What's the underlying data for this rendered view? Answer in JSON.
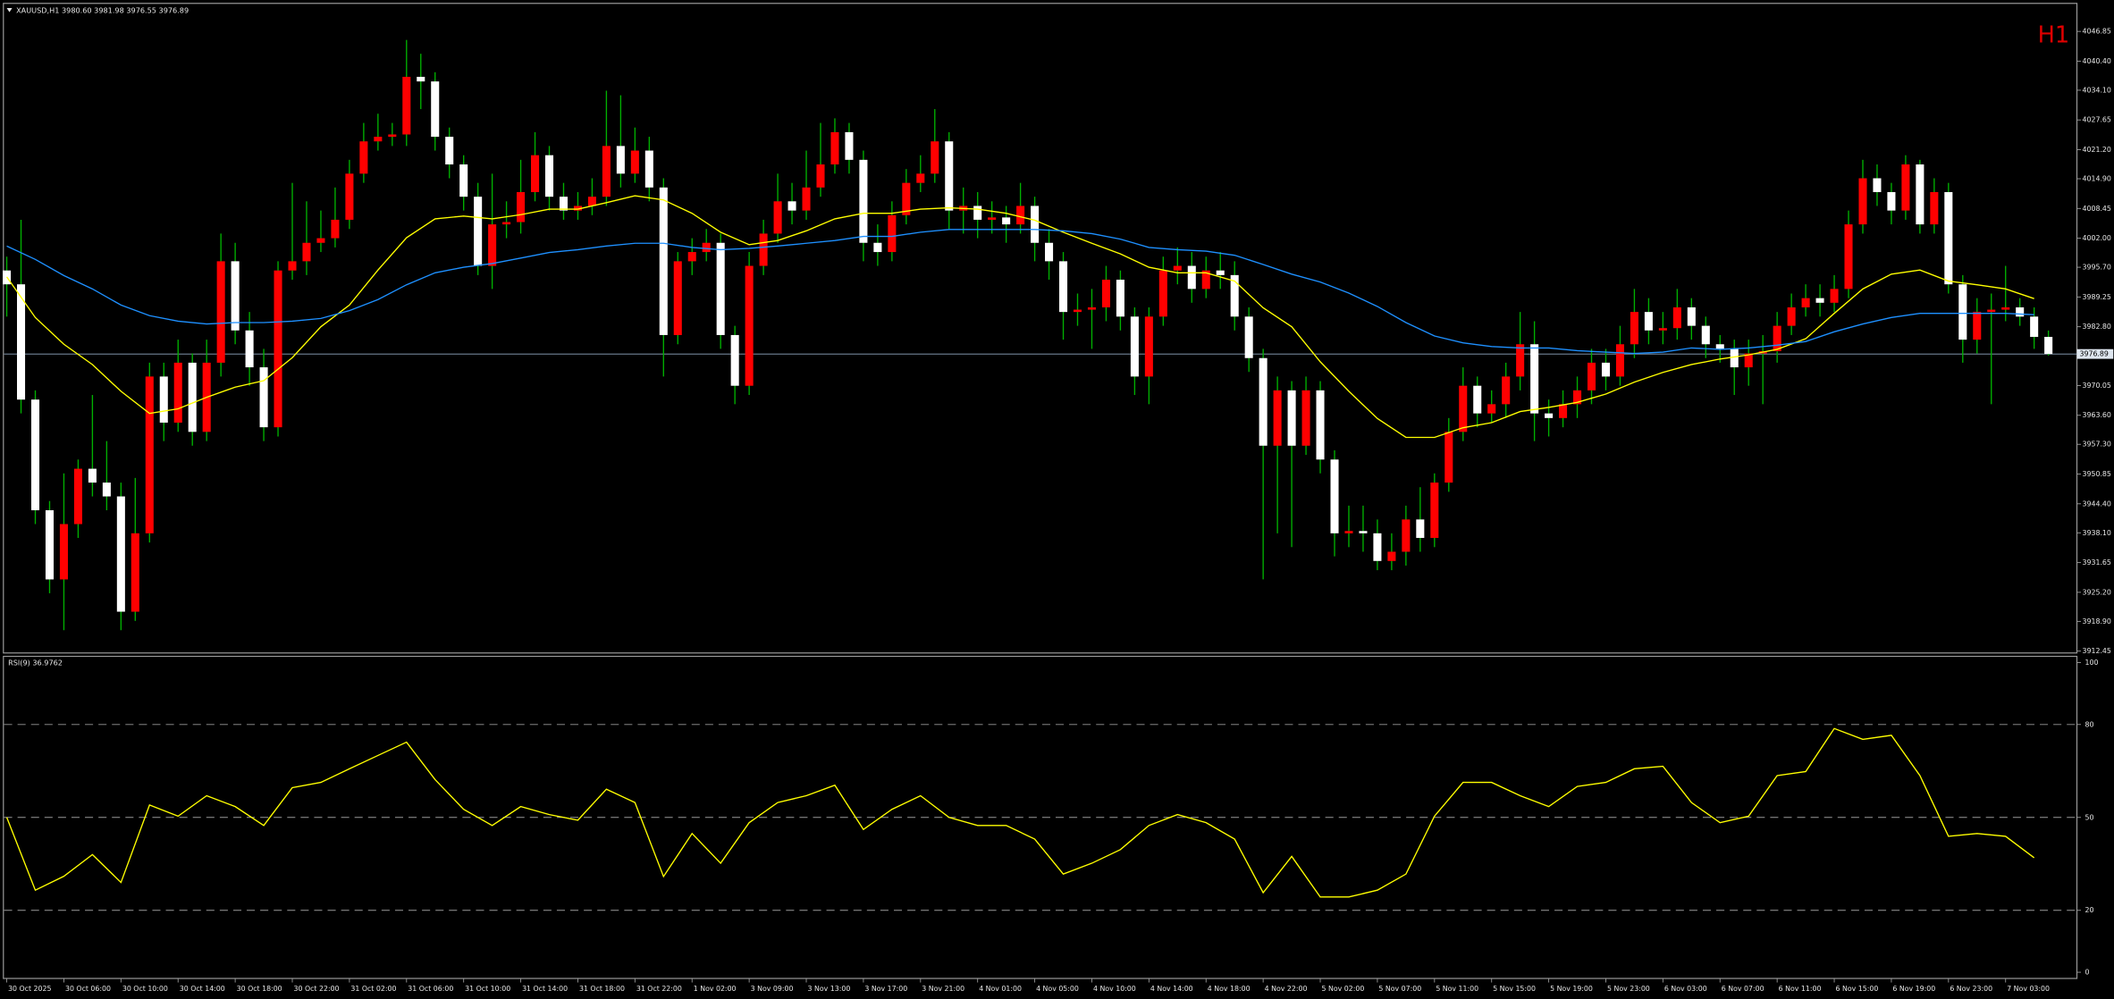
{
  "chart_data": {
    "type": "candlestick",
    "header": "XAUUSD,H1  3980.60 3981.98 3976.55 3976.89",
    "timeframe": "H1",
    "bull_color": "#ff0000",
    "bear_color": "#ffffff",
    "wick_color": "#00b000",
    "ylim": [
      3911.9,
      4052.2
    ],
    "yticks": [
      4046.85,
      {
        "value": 4040.4,
        "label": "4040.40"
      },
      {
        "value": 4034.1,
        "label": "4034.10"
      },
      4027.65,
      {
        "value": 4021.2,
        "label": "4021.20"
      },
      {
        "value": 4014.9,
        "label": "4014.90"
      },
      4008.45,
      {
        "value": 4002,
        "label": "4002.00"
      },
      {
        "value": 3995.7,
        "label": "3995.70"
      },
      3989.25,
      {
        "value": 3982.8,
        "label": "3982.80"
      },
      3970.05,
      {
        "value": 3963.6,
        "label": "3963.60"
      },
      {
        "value": 3957.3,
        "label": "3957.30"
      },
      3950.85,
      {
        "value": 3944.4,
        "label": "3944.40"
      },
      {
        "value": 3938.1,
        "label": "3938.10"
      },
      3931.65,
      {
        "value": 3925.2,
        "label": "3925.20"
      },
      {
        "value": 3918.9,
        "label": "3918.90"
      },
      3912.45
    ],
    "current_price": 3976.89,
    "current_price_color": "#8fa7bf",
    "open": [
      3995,
      3992,
      3967,
      3943,
      3928,
      3940,
      3952,
      3949,
      3946,
      3921,
      3938,
      3972,
      3962,
      3975,
      3960,
      3975,
      3997,
      3982,
      3974,
      3961,
      3995,
      3997,
      4001,
      4002,
      4006,
      4016,
      4023,
      4024,
      4024.5,
      4037,
      4036,
      4024,
      4018,
      4011,
      3996,
      4005,
      4005.5,
      4012,
      4020,
      4011,
      4008,
      4009,
      4011,
      4022,
      4016,
      4021,
      4013,
      3981,
      3997,
      3999,
      4001,
      3981,
      3970,
      3996,
      4003,
      4010,
      4008,
      4013,
      4018,
      4025,
      4019,
      4001,
      3999,
      4007,
      4014,
      4016,
      4023,
      4008,
      4009,
      4006,
      4006.5,
      4005,
      4009,
      4001,
      3997,
      3986,
      3986.5,
      3987,
      3993,
      3985,
      3972,
      3985,
      3995,
      3996,
      3991,
      3995,
      3994,
      3985,
      3976,
      3957,
      3969,
      3957,
      3969,
      3954,
      3938,
      3938.5,
      3938,
      3932,
      3934,
      3941,
      3937,
      3949,
      3960,
      3970,
      3964,
      3966,
      3972,
      3979,
      3964,
      3963,
      3966,
      3969,
      3975,
      3972,
      3979,
      3986,
      3982,
      3982.5,
      3987,
      3983,
      3979,
      3978,
      3974,
      3977,
      3977.5,
      3983,
      3987,
      3989,
      3988,
      3991,
      4005,
      4015,
      4012,
      4008,
      4018,
      4005,
      4012,
      3992,
      3980,
      3986,
      3986.5,
      3987,
      3985,
      3980.6
    ],
    "high": [
      3998,
      4006,
      3969,
      3945,
      3951,
      3954,
      3968,
      3958,
      3949,
      3950,
      3975,
      3975,
      3980,
      3977,
      3980,
      4003,
      4001,
      3986,
      3978,
      3997,
      4014,
      4010,
      4008,
      4013,
      4019,
      4027,
      4029,
      4027,
      4045,
      4042,
      4038,
      4026,
      4020,
      4014,
      4016,
      4010,
      4019,
      4025,
      4022,
      4014,
      4012,
      4015,
      4034,
      4033,
      4026,
      4024,
      4015,
      3999,
      4002,
      4004,
      4003,
      3983,
      3999,
      4006,
      4016,
      4014,
      4021,
      4027,
      4028,
      4027,
      4021,
      4005,
      4010,
      4017,
      4020,
      4030,
      4025,
      4013,
      4012,
      4010,
      4009,
      4014,
      4011,
      4004,
      3999,
      3990,
      3991,
      3996,
      3995,
      3987,
      3987,
      3998,
      4000,
      3999,
      3998,
      3999,
      3997,
      3987,
      3978,
      3972,
      3971,
      3972,
      3971,
      3956,
      3944,
      3944,
      3941,
      3938,
      3944,
      3948,
      3951,
      3963,
      3974,
      3972,
      3969,
      3975,
      3986,
      3984,
      3967,
      3969,
      3972,
      3978,
      3978,
      3983,
      3991,
      3989,
      3986,
      3991,
      3989,
      3985,
      3981,
      3980,
      3980,
      3981,
      3986,
      3990,
      3992,
      3992,
      3994,
      4008,
      4019,
      4018,
      4014,
      4020,
      4019,
      4015,
      4014,
      3994,
      3989,
      3990,
      3996,
      3989,
      3987,
      3981.98
    ],
    "low": [
      3985,
      3964,
      3940,
      3925,
      3917,
      3937,
      3946,
      3943,
      3917,
      3919,
      3936,
      3958,
      3960,
      3957,
      3958,
      3972,
      3979,
      3970,
      3958,
      3959,
      3993,
      3994,
      3999,
      4000,
      4004,
      4014,
      4021,
      4022,
      4022,
      4030,
      4021,
      4015,
      4008,
      3994,
      3991,
      4002,
      4003,
      4010,
      4008,
      4006,
      4006,
      4007,
      4009,
      4013,
      4014,
      4010,
      3972,
      3979,
      3994,
      3997,
      3978,
      3966,
      3968,
      3994,
      4001,
      4005,
      4006,
      4011,
      4016,
      4016,
      3997,
      3996,
      3997,
      4005,
      4012,
      4014,
      4004,
      4003,
      4002,
      4003,
      4001,
      4003,
      3997,
      3993,
      3980,
      3983,
      3978,
      3984,
      3982,
      3968,
      3966,
      3983,
      3992,
      3988,
      3989,
      3991,
      3982,
      3973,
      3928,
      3938,
      3935,
      3955,
      3951,
      3933,
      3935,
      3934,
      3930,
      3930,
      3931,
      3934,
      3935,
      3947,
      3958,
      3961,
      3962,
      3963,
      3969,
      3958,
      3959,
      3961,
      3963,
      3966,
      3969,
      3970,
      3976,
      3979,
      3979,
      3980,
      3980,
      3976,
      3975,
      3968,
      3970,
      3966,
      3975,
      3981,
      3985,
      3985,
      3986,
      3989,
      4003,
      4009,
      4005,
      4006,
      4003,
      4003,
      3990,
      3975,
      3977,
      3966,
      3984,
      3983,
      3978,
      3976.55
    ],
    "close": [
      3992,
      3967,
      3943,
      3928,
      3940,
      3952,
      3949,
      3946,
      3921,
      3938,
      3972,
      3962,
      3975,
      3960,
      3975,
      3997,
      3982,
      3974,
      3961,
      3995,
      3997,
      4001,
      4002,
      4006,
      4016,
      4023,
      4024,
      4024.5,
      4037,
      4036,
      4024,
      4018,
      4011,
      3996,
      4005,
      4005.5,
      4012,
      4020,
      4011,
      4008,
      4009,
      4011,
      4022,
      4016,
      4021,
      4013,
      3981,
      3997,
      3999,
      4001,
      3981,
      3970,
      3996,
      4003,
      4010,
      4008,
      4013,
      4018,
      4025,
      4019,
      4001,
      3999,
      4007,
      4014,
      4016,
      4023,
      4008,
      4009,
      4006,
      4006.5,
      4005,
      4009,
      4001,
      3997,
      3986,
      3986.5,
      3987,
      3993,
      3985,
      3972,
      3985,
      3995,
      3996,
      3991,
      3995,
      3994,
      3985,
      3976,
      3957,
      3969,
      3957,
      3969,
      3954,
      3938,
      3938.5,
      3938,
      3932,
      3934,
      3941,
      3937,
      3949,
      3960,
      3970,
      3964,
      3966,
      3972,
      3979,
      3964,
      3963,
      3966,
      3969,
      3975,
      3972,
      3979,
      3986,
      3982,
      3982.5,
      3987,
      3983,
      3979,
      3978,
      3974,
      3977,
      3977.5,
      3983,
      3987,
      3989,
      3988,
      3991,
      4005,
      4015,
      4012,
      4008,
      4018,
      4005,
      4012,
      3992,
      3980,
      3986,
      3986.5,
      3987,
      3985,
      3980.6,
      3976.89
    ],
    "xticks": [
      {
        "value": 0,
        "label": "30 Oct 2025"
      },
      {
        "value": 4,
        "label": "30 Oct 06:00"
      },
      {
        "value": 8,
        "label": "30 Oct 10:00"
      },
      {
        "value": 12,
        "label": "30 Oct 14:00"
      },
      {
        "value": 16,
        "label": "30 Oct 18:00"
      },
      {
        "value": 20,
        "label": "30 Oct 22:00"
      },
      {
        "value": 24,
        "label": "31 Oct 02:00"
      },
      {
        "value": 28,
        "label": "31 Oct 06:00"
      },
      {
        "value": 32,
        "label": "31 Oct 10:00"
      },
      {
        "value": 36,
        "label": "31 Oct 14:00"
      },
      {
        "value": 40,
        "label": "31 Oct 18:00"
      },
      {
        "value": 44,
        "label": "31 Oct 22:00"
      },
      {
        "value": 48,
        "label": "1 Nov 02:00"
      },
      {
        "value": 52,
        "label": "3 Nov 09:00"
      },
      {
        "value": 56,
        "label": "3 Nov 13:00"
      },
      {
        "value": 60,
        "label": "3 Nov 17:00"
      },
      {
        "value": 64,
        "label": "3 Nov 21:00"
      },
      {
        "value": 68,
        "label": "4 Nov 01:00"
      },
      {
        "value": 72,
        "label": "4 Nov 05:00"
      },
      {
        "value": 76,
        "label": "4 Nov 10:00"
      },
      {
        "value": 80,
        "label": "4 Nov 14:00"
      },
      {
        "value": 84,
        "label": "4 Nov 18:00"
      },
      {
        "value": 88,
        "label": "4 Nov 22:00"
      },
      {
        "value": 92,
        "label": "5 Nov 02:00"
      },
      {
        "value": 96,
        "label": "5 Nov 07:00"
      },
      {
        "value": 100,
        "label": "5 Nov 11:00"
      },
      {
        "value": 104,
        "label": "5 Nov 15:00"
      },
      {
        "value": 108,
        "label": "5 Nov 19:00"
      },
      {
        "value": 112,
        "label": "5 Nov 23:00"
      },
      {
        "value": 116,
        "label": "6 Nov 03:00"
      },
      {
        "value": 120,
        "label": "6 Nov 07:00"
      },
      {
        "value": 124,
        "label": "6 Nov 11:00"
      },
      {
        "value": 128,
        "label": "6 Nov 15:00"
      },
      {
        "value": 132,
        "label": "6 Nov 19:00"
      },
      {
        "value": 136,
        "label": "6 Nov 23:00"
      },
      {
        "value": 140,
        "label": "7 Nov 03:00"
      }
    ],
    "ma_x": [
      0,
      2,
      4,
      6,
      8,
      10,
      12,
      14,
      16,
      18,
      20,
      22,
      24,
      26,
      28,
      30,
      32,
      34,
      36,
      38,
      40,
      42,
      44,
      46,
      48,
      50,
      52,
      54,
      56,
      58,
      60,
      62,
      64,
      66,
      68,
      70,
      72,
      74,
      76,
      78,
      80,
      82,
      84,
      86,
      88,
      90,
      92,
      94,
      96,
      98,
      100,
      102,
      104,
      106,
      108,
      110,
      112,
      114,
      116,
      118,
      120,
      122,
      124,
      126,
      128,
      130,
      132,
      134,
      136,
      138,
      140,
      142
    ],
    "lines": [
      {
        "color": "#ffff00",
        "values": [
          3993.6,
          3984.8,
          3979,
          3974.6,
          3968.8,
          3964,
          3965,
          3967.5,
          3969.7,
          3971.1,
          3976.1,
          3982.8,
          3987.5,
          3995.1,
          4002.1,
          4006.2,
          4006.8,
          4006.2,
          4007.1,
          4008.3,
          4008.3,
          4009.7,
          4011.2,
          4010.3,
          4007.4,
          4003.3,
          4000.6,
          4001.5,
          4003.6,
          4006.2,
          4007.4,
          4007.4,
          4008.3,
          4008.6,
          4008.3,
          4007.4,
          4005.9,
          4003.3,
          4000.9,
          3998.6,
          3995.7,
          3994.5,
          3994.5,
          3992.7,
          3986.9,
          3982.8,
          3975.2,
          3968.8,
          3962.9,
          3958.8,
          3958.8,
          3960.9,
          3962,
          3964.4,
          3965.3,
          3966.4,
          3968.2,
          3970.8,
          3972.9,
          3974.6,
          3975.8,
          3976.7,
          3977.9,
          3980.2,
          3985.7,
          3991,
          3994.2,
          3995.1,
          3992.7,
          3991.9,
          3991,
          3988.9
        ]
      },
      {
        "color": "#1e90ff",
        "values": [
          4000.3,
          3997.4,
          3993.9,
          3991,
          3987.5,
          3985.2,
          3984,
          3983.4,
          3983.7,
          3983.7,
          3984,
          3984.6,
          3986.3,
          3988.7,
          3991.9,
          3994.5,
          3995.7,
          3996.5,
          3997.7,
          3998.9,
          3999.5,
          4000.3,
          4000.9,
          4000.9,
          4000,
          3999.5,
          3999.8,
          4000.3,
          4000.9,
          4001.5,
          4002.4,
          4002.4,
          4003.3,
          4003.9,
          4003.9,
          4003.9,
          4003.9,
          4003.6,
          4003,
          4001.8,
          4000,
          3999.5,
          3999.2,
          3998.3,
          3996.3,
          3994.2,
          3992.5,
          3990.1,
          3987.2,
          3983.7,
          3980.8,
          3979.3,
          3978.5,
          3978.2,
          3978.2,
          3977.6,
          3977.3,
          3977,
          3977.3,
          3978.2,
          3977.9,
          3978.2,
          3978.8,
          3979.6,
          3981.7,
          3983.4,
          3984.8,
          3985.7,
          3985.7,
          3985.7,
          3985.7,
          3985.4
        ]
      }
    ],
    "rsi": {
      "label": "RSI(9) 36.9762",
      "color": "#ffff00",
      "ylim": [
        -2,
        102
      ],
      "yticks": [
        100,
        80,
        50,
        20,
        0
      ],
      "levels": [
        80,
        50,
        20
      ],
      "values": [
        50,
        26.5,
        31,
        38,
        29,
        54,
        50.4,
        57,
        53.5,
        47.4,
        59.6,
        61.3,
        65.7,
        70,
        74.3,
        62.2,
        52.6,
        47.4,
        53.5,
        50.9,
        49.1,
        59.1,
        54.8,
        30.9,
        44.8,
        35.2,
        48.3,
        54.8,
        57,
        60.4,
        46.1,
        52.6,
        57,
        50,
        47.4,
        47.4,
        43,
        31.7,
        35.2,
        39.6,
        47.4,
        50.9,
        48.3,
        43,
        25.7,
        37.4,
        24.3,
        24.3,
        26.5,
        31.7,
        50.4,
        61.3,
        61.3,
        57,
        53.5,
        60,
        61.3,
        65.7,
        66.5,
        54.8,
        48.3,
        50.4,
        63.5,
        64.8,
        78.7,
        75.2,
        76.5,
        63.5,
        43.9,
        44.8,
        43.9,
        36.9762
      ]
    }
  }
}
